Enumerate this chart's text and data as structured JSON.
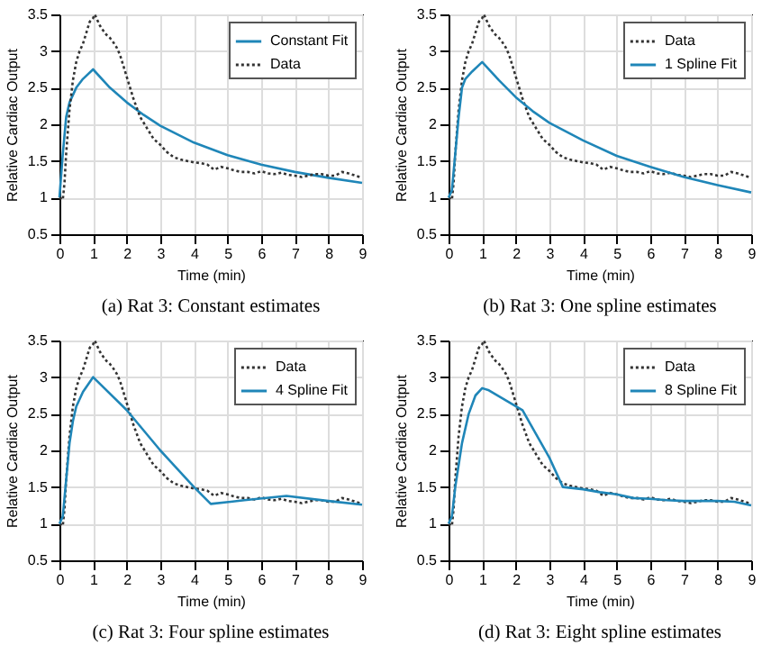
{
  "chart_data": [
    {
      "type": "line",
      "title": "(a) Rat 3: Constant estimates",
      "xlabel": "Time (min)",
      "ylabel": "Relative Cardiac Output",
      "xlim": [
        0,
        9
      ],
      "xticks": [
        0,
        1,
        2,
        3,
        4,
        5,
        6,
        7,
        8,
        9
      ],
      "ylim": [
        0.5,
        3.5
      ],
      "yticks": [
        0.5,
        1,
        1.5,
        2,
        2.5,
        3,
        3.5
      ],
      "grid": true,
      "legend": "top right",
      "series": [
        {
          "name": "Constant Fit",
          "color": "#1f86b8",
          "line_style": "solid",
          "x": [
            0,
            0.1,
            0.2,
            0.3,
            0.5,
            0.7,
            1.0,
            1.5,
            2,
            2.5,
            3,
            4,
            5,
            6,
            7,
            8,
            9
          ],
          "values": [
            1.0,
            1.6,
            2.1,
            2.3,
            2.5,
            2.62,
            2.75,
            2.5,
            2.3,
            2.13,
            1.98,
            1.75,
            1.58,
            1.45,
            1.35,
            1.27,
            1.2
          ]
        },
        {
          "name": "Data",
          "color": "#333333",
          "line_style": "dotted",
          "x": [
            0,
            0.1,
            0.15,
            0.2,
            0.3,
            0.4,
            0.5,
            0.6,
            0.7,
            0.8,
            0.9,
            1.0,
            1.05,
            1.1,
            1.2,
            1.3,
            1.4,
            1.5,
            1.6,
            1.7,
            1.8,
            1.9,
            2.0,
            2.2,
            2.4,
            2.6,
            2.8,
            3.0,
            3.2,
            3.4,
            3.6,
            3.8,
            4.0,
            4.2,
            4.4,
            4.6,
            4.8,
            5.0,
            5.2,
            5.4,
            5.6,
            5.8,
            6.0,
            6.2,
            6.4,
            6.6,
            6.8,
            7.0,
            7.2,
            7.4,
            7.6,
            7.8,
            8.0,
            8.2,
            8.4,
            8.6,
            8.8,
            9.0
          ],
          "values": [
            1.0,
            0.97,
            1.2,
            1.6,
            2.2,
            2.6,
            2.85,
            3.0,
            3.1,
            3.25,
            3.4,
            3.45,
            3.5,
            3.45,
            3.35,
            3.28,
            3.22,
            3.18,
            3.12,
            3.05,
            2.95,
            2.8,
            2.65,
            2.35,
            2.1,
            1.95,
            1.8,
            1.72,
            1.62,
            1.55,
            1.52,
            1.5,
            1.48,
            1.47,
            1.45,
            1.38,
            1.42,
            1.4,
            1.37,
            1.35,
            1.35,
            1.33,
            1.36,
            1.33,
            1.32,
            1.34,
            1.31,
            1.3,
            1.28,
            1.3,
            1.32,
            1.32,
            1.3,
            1.3,
            1.35,
            1.33,
            1.3,
            1.27
          ]
        }
      ]
    },
    {
      "type": "line",
      "title": "(b) Rat 3: One spline estimates",
      "xlabel": "Time (min)",
      "ylabel": "Relative Cardiac Output",
      "xlim": [
        0,
        9
      ],
      "xticks": [
        0,
        1,
        2,
        3,
        4,
        5,
        6,
        7,
        8,
        9
      ],
      "ylim": [
        0.5,
        3.5
      ],
      "yticks": [
        0.5,
        1,
        1.5,
        2,
        2.5,
        3,
        3.5
      ],
      "grid": true,
      "legend": "top right",
      "series": [
        {
          "name": "Data",
          "color": "#333333",
          "line_style": "dotted",
          "x": [
            0,
            0.1,
            0.15,
            0.2,
            0.3,
            0.4,
            0.5,
            0.6,
            0.7,
            0.8,
            0.9,
            1.0,
            1.05,
            1.1,
            1.2,
            1.3,
            1.4,
            1.5,
            1.6,
            1.7,
            1.8,
            1.9,
            2.0,
            2.2,
            2.4,
            2.6,
            2.8,
            3.0,
            3.2,
            3.4,
            3.6,
            3.8,
            4.0,
            4.2,
            4.4,
            4.6,
            4.8,
            5.0,
            5.2,
            5.4,
            5.6,
            5.8,
            6.0,
            6.2,
            6.4,
            6.6,
            6.8,
            7.0,
            7.2,
            7.4,
            7.6,
            7.8,
            8.0,
            8.2,
            8.4,
            8.6,
            8.8,
            9.0
          ],
          "values": [
            1.0,
            0.97,
            1.2,
            1.6,
            2.2,
            2.6,
            2.85,
            3.0,
            3.1,
            3.25,
            3.4,
            3.45,
            3.5,
            3.45,
            3.35,
            3.28,
            3.22,
            3.18,
            3.12,
            3.05,
            2.95,
            2.8,
            2.65,
            2.35,
            2.1,
            1.95,
            1.8,
            1.72,
            1.62,
            1.55,
            1.52,
            1.5,
            1.48,
            1.47,
            1.45,
            1.38,
            1.42,
            1.4,
            1.37,
            1.35,
            1.35,
            1.33,
            1.36,
            1.33,
            1.32,
            1.34,
            1.31,
            1.3,
            1.28,
            1.3,
            1.32,
            1.32,
            1.3,
            1.3,
            1.35,
            1.33,
            1.3,
            1.27
          ]
        },
        {
          "name": "1 Spline Fit",
          "color": "#1f86b8",
          "line_style": "solid",
          "x": [
            0,
            0.1,
            0.2,
            0.3,
            0.4,
            0.5,
            0.7,
            1.0,
            1.5,
            2,
            2.5,
            3,
            4,
            5,
            6,
            7,
            8,
            9
          ],
          "values": [
            1.0,
            1.1,
            1.6,
            2.1,
            2.5,
            2.62,
            2.72,
            2.85,
            2.6,
            2.37,
            2.18,
            2.02,
            1.78,
            1.57,
            1.42,
            1.28,
            1.17,
            1.07
          ]
        }
      ]
    },
    {
      "type": "line",
      "title": "(c) Rat 3: Four spline estimates",
      "xlabel": "Time (min)",
      "ylabel": "Relative Cardiac Output",
      "xlim": [
        0,
        9
      ],
      "xticks": [
        0,
        1,
        2,
        3,
        4,
        5,
        6,
        7,
        8,
        9
      ],
      "ylim": [
        0.5,
        3.5
      ],
      "yticks": [
        0.5,
        1,
        1.5,
        2,
        2.5,
        3,
        3.5
      ],
      "grid": true,
      "legend": "top right",
      "series": [
        {
          "name": "Data",
          "color": "#333333",
          "line_style": "dotted",
          "x": [
            0,
            0.1,
            0.15,
            0.2,
            0.3,
            0.4,
            0.5,
            0.6,
            0.7,
            0.8,
            0.9,
            1.0,
            1.05,
            1.1,
            1.2,
            1.3,
            1.4,
            1.5,
            1.6,
            1.7,
            1.8,
            1.9,
            2.0,
            2.2,
            2.4,
            2.6,
            2.8,
            3.0,
            3.2,
            3.4,
            3.6,
            3.8,
            4.0,
            4.2,
            4.4,
            4.6,
            4.8,
            5.0,
            5.2,
            5.4,
            5.6,
            5.8,
            6.0,
            6.2,
            6.4,
            6.6,
            6.8,
            7.0,
            7.2,
            7.4,
            7.6,
            7.8,
            8.0,
            8.2,
            8.4,
            8.6,
            8.8,
            9.0
          ],
          "values": [
            1.0,
            0.97,
            1.2,
            1.6,
            2.2,
            2.6,
            2.85,
            3.0,
            3.1,
            3.25,
            3.4,
            3.45,
            3.5,
            3.45,
            3.35,
            3.28,
            3.22,
            3.18,
            3.12,
            3.05,
            2.95,
            2.8,
            2.65,
            2.35,
            2.1,
            1.95,
            1.8,
            1.72,
            1.62,
            1.55,
            1.52,
            1.5,
            1.48,
            1.47,
            1.45,
            1.38,
            1.42,
            1.4,
            1.37,
            1.35,
            1.35,
            1.33,
            1.36,
            1.33,
            1.32,
            1.34,
            1.31,
            1.3,
            1.28,
            1.3,
            1.32,
            1.32,
            1.3,
            1.3,
            1.35,
            1.33,
            1.3,
            1.27
          ]
        },
        {
          "name": "4 Spline Fit",
          "color": "#1f86b8",
          "line_style": "solid",
          "x": [
            0,
            0.1,
            0.2,
            0.3,
            0.4,
            0.5,
            0.7,
            1.0,
            2,
            3,
            4,
            4.5,
            5.5,
            6.75,
            8,
            9
          ],
          "values": [
            1.0,
            1.1,
            1.6,
            2.1,
            2.4,
            2.6,
            2.8,
            3.0,
            2.55,
            2.0,
            1.5,
            1.27,
            1.32,
            1.38,
            1.31,
            1.26
          ]
        }
      ]
    },
    {
      "type": "line",
      "title": "(d) Rat 3: Eight spline estimates",
      "xlabel": "Time (min)",
      "ylabel": "Relative Cardiac Output",
      "xlim": [
        0,
        9
      ],
      "xticks": [
        0,
        1,
        2,
        3,
        4,
        5,
        6,
        7,
        8,
        9
      ],
      "ylim": [
        0.5,
        3.5
      ],
      "yticks": [
        0.5,
        1,
        1.5,
        2,
        2.5,
        3,
        3.5
      ],
      "grid": true,
      "legend": "top right",
      "series": [
        {
          "name": "Data",
          "color": "#333333",
          "line_style": "dotted",
          "x": [
            0,
            0.1,
            0.15,
            0.2,
            0.3,
            0.4,
            0.5,
            0.6,
            0.7,
            0.8,
            0.9,
            1.0,
            1.05,
            1.1,
            1.2,
            1.3,
            1.4,
            1.5,
            1.6,
            1.7,
            1.8,
            1.9,
            2.0,
            2.2,
            2.4,
            2.6,
            2.8,
            3.0,
            3.2,
            3.4,
            3.6,
            3.8,
            4.0,
            4.2,
            4.4,
            4.6,
            4.8,
            5.0,
            5.2,
            5.4,
            5.6,
            5.8,
            6.0,
            6.2,
            6.4,
            6.6,
            6.8,
            7.0,
            7.2,
            7.4,
            7.6,
            7.8,
            8.0,
            8.2,
            8.4,
            8.6,
            8.8,
            9.0
          ],
          "values": [
            1.0,
            0.97,
            1.2,
            1.6,
            2.2,
            2.6,
            2.85,
            3.0,
            3.1,
            3.25,
            3.4,
            3.45,
            3.5,
            3.45,
            3.35,
            3.28,
            3.22,
            3.18,
            3.12,
            3.05,
            2.95,
            2.8,
            2.65,
            2.35,
            2.1,
            1.95,
            1.8,
            1.72,
            1.62,
            1.55,
            1.52,
            1.5,
            1.48,
            1.47,
            1.45,
            1.38,
            1.42,
            1.4,
            1.37,
            1.35,
            1.35,
            1.33,
            1.36,
            1.33,
            1.32,
            1.34,
            1.31,
            1.3,
            1.28,
            1.3,
            1.32,
            1.32,
            1.3,
            1.3,
            1.35,
            1.33,
            1.3,
            1.27
          ]
        },
        {
          "name": "8 Spline Fit",
          "color": "#1f86b8",
          "line_style": "solid",
          "x": [
            0,
            0.1,
            0.2,
            0.4,
            0.6,
            0.8,
            1.0,
            1.2,
            2.2,
            3.0,
            3.4,
            4,
            4.5,
            5,
            5.5,
            6,
            6.5,
            7,
            7.5,
            8,
            8.5,
            9
          ],
          "values": [
            1.0,
            1.1,
            1.5,
            2.1,
            2.5,
            2.75,
            2.85,
            2.82,
            2.55,
            1.9,
            1.5,
            1.47,
            1.43,
            1.4,
            1.35,
            1.34,
            1.32,
            1.31,
            1.31,
            1.31,
            1.3,
            1.25
          ]
        }
      ]
    }
  ]
}
